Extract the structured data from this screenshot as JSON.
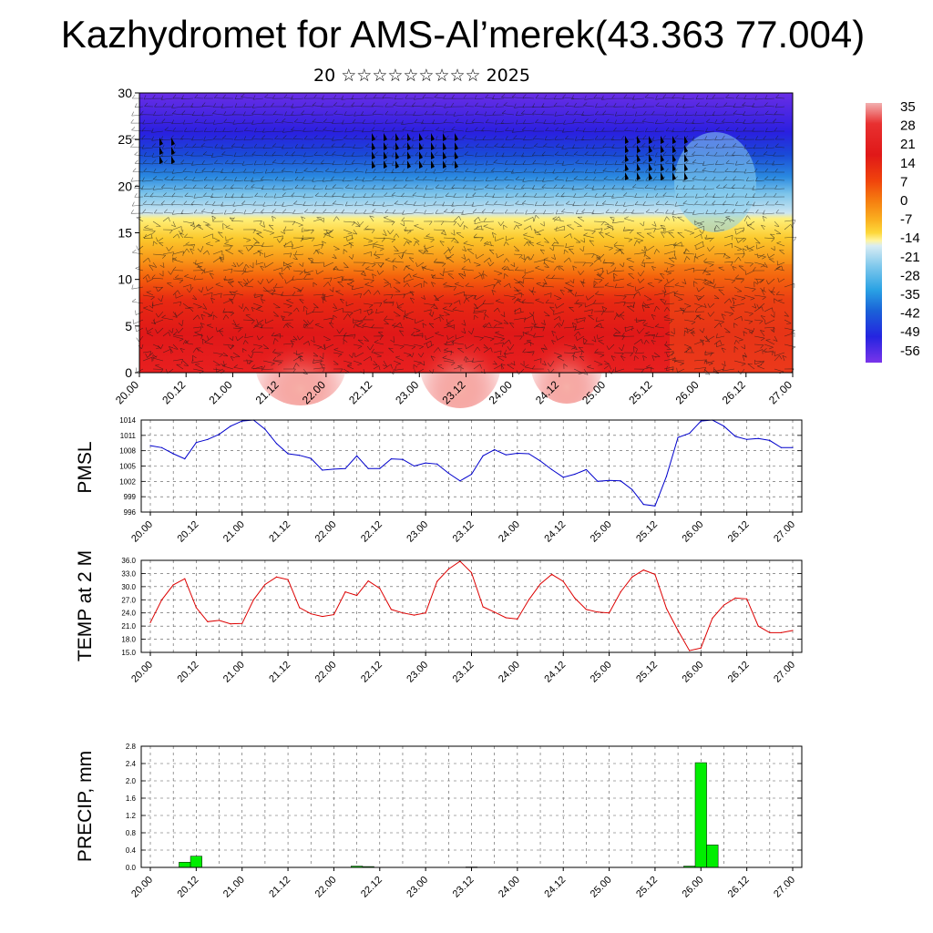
{
  "header": {
    "title": "Kazhydromet for AMS-Al’merek(43.363 77.004)",
    "subtitle": "20 ☆☆☆☆☆☆☆☆☆ 2025"
  },
  "time_labels": [
    "20.00",
    "20.12",
    "21.00",
    "21.12",
    "22.00",
    "22.12",
    "23.00",
    "23.12",
    "24.00",
    "24.12",
    "25.00",
    "25.12",
    "26.00",
    "26.12",
    "27.00"
  ],
  "colorbar": {
    "labels": [
      "35",
      "28",
      "21",
      "14",
      "7",
      "0",
      "-7",
      "-14",
      "-21",
      "-28",
      "-35",
      "-42",
      "-49",
      "-56"
    ],
    "colors": [
      "#f0a8a8",
      "#ec6e6e",
      "#e02020",
      "#ee3a10",
      "#f66a0e",
      "#fa9a18",
      "#fcc628",
      "#fff078",
      "#d8ecf4",
      "#7ec8ec",
      "#2aa2e4",
      "#1a62d8",
      "#2424e0",
      "#6c2ce8"
    ]
  },
  "chart_data": [
    {
      "type": "heatmap",
      "title": "Kazhydromet for AMS-Al’merek(43.363 77.004)",
      "ylabel": "",
      "ylim": [
        0,
        30
      ],
      "yticks": [
        0,
        5,
        10,
        15,
        20,
        25,
        30
      ],
      "x_range": [
        "20.00",
        "27.00"
      ],
      "note_levels": [
        {
          "z_max": 5,
          "value_range": "21..35"
        },
        {
          "z_max": 11,
          "value_range": "14..21"
        },
        {
          "z_max": 15,
          "value_range": "0..14"
        },
        {
          "z_max": 17,
          "value_range": "-7..0"
        },
        {
          "z_max": 20,
          "value_range": "-21..-14"
        },
        {
          "z_max": 24,
          "value_range": "-42..-28"
        },
        {
          "z_max": 30,
          "value_range": "-56..-49"
        }
      ]
    },
    {
      "type": "line",
      "ylabel": "PMSL",
      "ylim": [
        996,
        1014
      ],
      "yticks": [
        996,
        999,
        1002,
        1005,
        1008,
        1011,
        1014
      ],
      "color": "#0000cc",
      "x_hours": [
        0,
        3,
        6,
        9,
        12,
        15,
        18,
        21,
        24,
        27,
        30,
        33,
        36,
        39,
        42,
        45,
        48,
        51,
        54,
        57,
        60,
        63,
        66,
        69,
        72,
        75,
        78,
        81,
        84,
        87,
        90,
        93,
        96,
        99,
        102,
        105,
        108,
        111,
        114,
        117,
        120,
        123,
        126,
        129,
        132,
        135,
        138,
        141,
        144,
        147,
        150,
        153,
        156,
        159,
        162,
        165,
        168
      ],
      "values": [
        1009.0,
        1008.6,
        1007.4,
        1006.4,
        1009.6,
        1010.2,
        1011.2,
        1012.8,
        1013.8,
        1014.0,
        1012.2,
        1009.4,
        1007.4,
        1007.1,
        1006.5,
        1004.2,
        1004.4,
        1004.5,
        1007.0,
        1004.5,
        1004.5,
        1006.4,
        1006.3,
        1005.0,
        1005.6,
        1005.4,
        1003.6,
        1002.1,
        1003.4,
        1007.0,
        1008.2,
        1007.2,
        1007.5,
        1007.4,
        1006.0,
        1004.3,
        1002.8,
        1003.4,
        1004.3,
        1002.0,
        1002.2,
        1002.1,
        1000.4,
        997.5,
        997.2,
        1003.0,
        1010.6,
        1011.4,
        1013.8,
        1014.0,
        1012.8,
        1010.8,
        1010.2,
        1010.4,
        1010.0,
        1008.6,
        1008.6
      ]
    },
    {
      "type": "line",
      "ylabel": "TEMP at 2 M",
      "ylim": [
        15.0,
        36.0
      ],
      "yticks": [
        15.0,
        18.0,
        21.0,
        24.0,
        27.0,
        30.0,
        33.0,
        36.0
      ],
      "color": "#dd0000",
      "x_hours": [
        0,
        3,
        6,
        9,
        12,
        15,
        18,
        21,
        24,
        27,
        30,
        33,
        36,
        39,
        42,
        45,
        48,
        51,
        54,
        57,
        60,
        63,
        66,
        69,
        72,
        75,
        78,
        81,
        84,
        87,
        90,
        93,
        96,
        99,
        102,
        105,
        108,
        111,
        114,
        117,
        120,
        123,
        126,
        129,
        132,
        135,
        138,
        141,
        144,
        147,
        150,
        153,
        156,
        159,
        162,
        165,
        168
      ],
      "values": [
        21.8,
        27.0,
        30.4,
        31.8,
        25.2,
        22.0,
        22.3,
        21.5,
        21.6,
        27.0,
        30.5,
        32.2,
        31.6,
        25.2,
        23.8,
        23.2,
        23.6,
        28.8,
        28.0,
        31.3,
        29.6,
        24.8,
        24.0,
        23.5,
        24.0,
        31.2,
        34.0,
        35.8,
        33.2,
        25.4,
        24.2,
        22.9,
        22.6,
        27.0,
        30.6,
        32.8,
        31.2,
        27.4,
        24.8,
        24.2,
        24.0,
        28.8,
        32.2,
        33.8,
        32.8,
        25.0,
        20.0,
        15.4,
        16.0,
        22.8,
        25.8,
        27.4,
        27.2,
        21.0,
        19.5,
        19.5,
        20.0
      ]
    },
    {
      "type": "bar",
      "ylabel": "PRECIP, mm",
      "ylim": [
        0.0,
        2.8
      ],
      "yticks": [
        0.0,
        0.4,
        0.8,
        1.2,
        1.6,
        2.0,
        2.4,
        2.8
      ],
      "color": "#00ee00",
      "bars": [
        {
          "hour": 9,
          "value": 0.12
        },
        {
          "hour": 12,
          "value": 0.26
        },
        {
          "hour": 54,
          "value": 0.03
        },
        {
          "hour": 57,
          "value": 0.02
        },
        {
          "hour": 84,
          "value": 0.01
        },
        {
          "hour": 141,
          "value": 0.03
        },
        {
          "hour": 144,
          "value": 2.42
        },
        {
          "hour": 147,
          "value": 0.52
        }
      ]
    }
  ]
}
